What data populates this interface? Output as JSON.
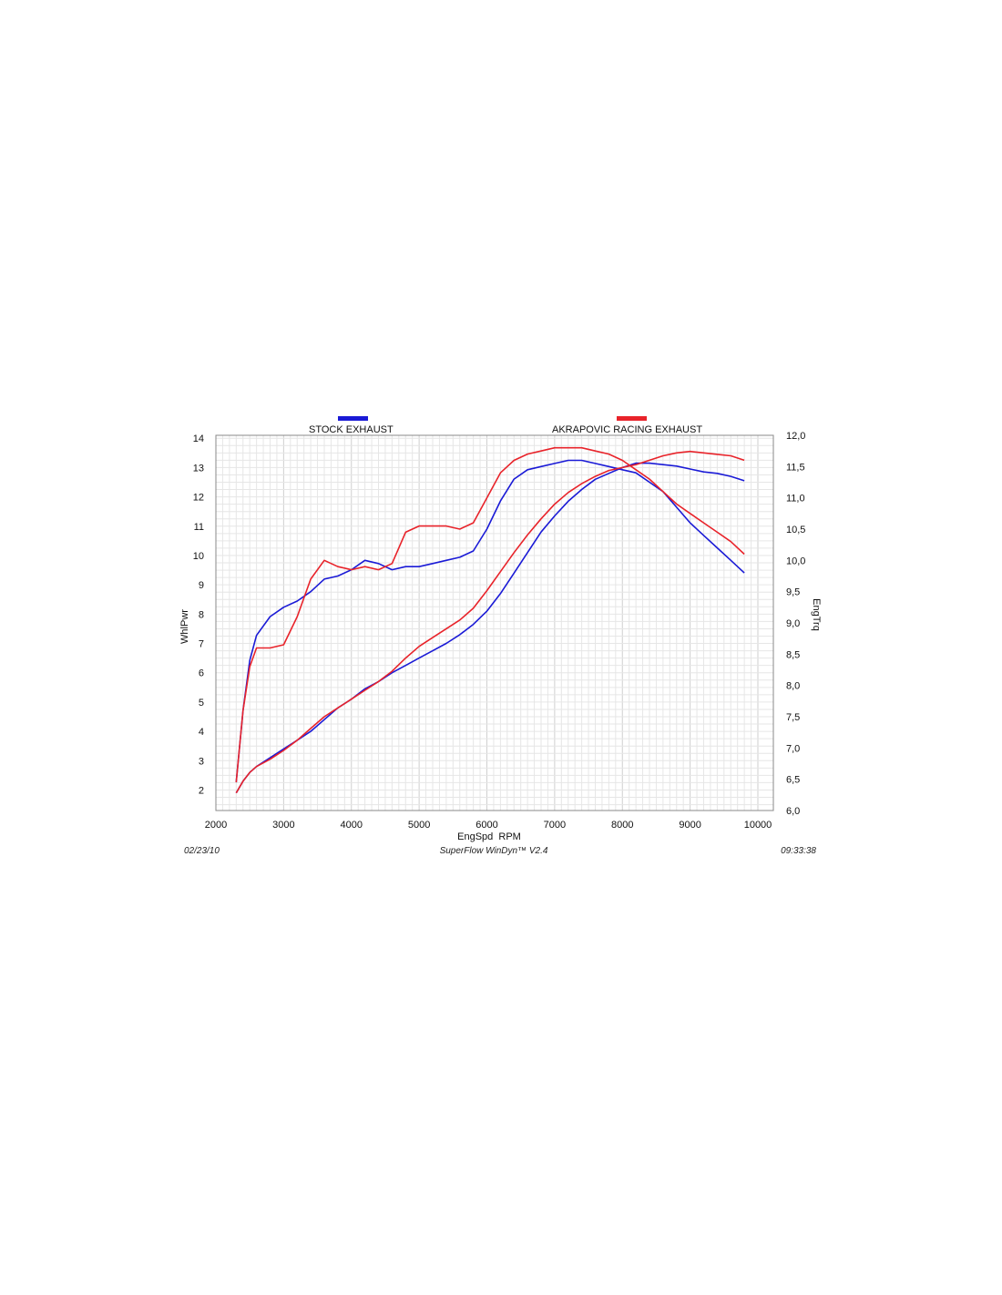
{
  "chart_data": {
    "type": "line",
    "xlabel": "EngSpd  RPM",
    "ylabel": "WhlPwr",
    "y2label": "EngTrq",
    "xlim": [
      2000,
      10000
    ],
    "ylim": [
      1.3,
      14.1
    ],
    "y2lim": [
      6.0,
      12.0
    ],
    "x_ticks": [
      2000,
      3000,
      4000,
      5000,
      6000,
      7000,
      8000,
      9000,
      10000
    ],
    "y_ticks": [
      2,
      3,
      4,
      5,
      6,
      7,
      8,
      9,
      10,
      11,
      12,
      13,
      14
    ],
    "y2_ticks": [
      "6,0",
      "6,5",
      "7,0",
      "7,5",
      "8,0",
      "8,5",
      "9,0",
      "9,5",
      "10,0",
      "10,5",
      "11,0",
      "11,5",
      "12,0"
    ],
    "grid": true,
    "legend": [
      {
        "name": "STOCK EXHAUST",
        "color": "#1a1ad6"
      },
      {
        "name": "AKRAPOVIC RACING EXHAUST",
        "color": "#e8232a"
      }
    ],
    "series": [
      {
        "name": "STOCK EXHAUST",
        "measure": "WhlPwr",
        "axis": "left",
        "color": "#1a1ad6",
        "x": [
          2300,
          2400,
          2500,
          2600,
          2800,
          3000,
          3200,
          3400,
          3600,
          3800,
          4000,
          4200,
          4400,
          4600,
          4800,
          5000,
          5200,
          5400,
          5600,
          5800,
          6000,
          6200,
          6400,
          6600,
          6800,
          7000,
          7200,
          7400,
          7600,
          7800,
          8000,
          8200,
          8400,
          8600,
          8800,
          9000,
          9200,
          9400,
          9600,
          9800
        ],
        "y": [
          1.9,
          2.3,
          2.6,
          2.8,
          3.1,
          3.4,
          3.7,
          4.0,
          4.4,
          4.8,
          5.1,
          5.45,
          5.7,
          6.0,
          6.25,
          6.5,
          6.75,
          7.0,
          7.3,
          7.65,
          8.1,
          8.7,
          9.4,
          10.1,
          10.8,
          11.35,
          11.85,
          12.25,
          12.6,
          12.8,
          13.0,
          13.15,
          13.15,
          13.1,
          13.05,
          12.95,
          12.85,
          12.8,
          12.7,
          12.55
        ]
      },
      {
        "name": "STOCK EXHAUST",
        "measure": "EngTrq",
        "axis": "right",
        "color": "#1a1ad6",
        "x": [
          2300,
          2400,
          2500,
          2600,
          2800,
          3000,
          3200,
          3400,
          3600,
          3800,
          4000,
          4200,
          4400,
          4600,
          4800,
          5000,
          5200,
          5400,
          5600,
          5800,
          6000,
          6200,
          6400,
          6600,
          6800,
          7000,
          7200,
          7400,
          7600,
          7800,
          8000,
          8200,
          8400,
          8600,
          8800,
          9000,
          9200,
          9400,
          9600,
          9800
        ],
        "y": [
          6.45,
          7.6,
          8.4,
          8.8,
          9.1,
          9.25,
          9.35,
          9.5,
          9.7,
          9.75,
          9.85,
          10.0,
          9.95,
          9.85,
          9.9,
          9.9,
          9.95,
          10.0,
          10.05,
          10.15,
          10.5,
          10.95,
          11.3,
          11.45,
          11.5,
          11.55,
          11.6,
          11.6,
          11.55,
          11.5,
          11.45,
          11.4,
          11.25,
          11.1,
          10.85,
          10.6,
          10.4,
          10.2,
          10.0,
          9.8
        ]
      },
      {
        "name": "AKRAPOVIC RACING EXHAUST",
        "measure": "WhlPwr",
        "axis": "left",
        "color": "#e8232a",
        "x": [
          2300,
          2400,
          2500,
          2600,
          2800,
          3000,
          3200,
          3400,
          3600,
          3800,
          4000,
          4200,
          4400,
          4600,
          4800,
          5000,
          5200,
          5400,
          5600,
          5800,
          6000,
          6200,
          6400,
          6600,
          6800,
          7000,
          7200,
          7400,
          7600,
          7800,
          8000,
          8200,
          8400,
          8600,
          8800,
          9000,
          9200,
          9400,
          9600,
          9800
        ],
        "y": [
          1.9,
          2.3,
          2.6,
          2.8,
          3.05,
          3.35,
          3.7,
          4.1,
          4.5,
          4.8,
          5.1,
          5.4,
          5.7,
          6.05,
          6.5,
          6.9,
          7.2,
          7.5,
          7.8,
          8.2,
          8.8,
          9.45,
          10.1,
          10.7,
          11.25,
          11.75,
          12.15,
          12.45,
          12.7,
          12.9,
          13.0,
          13.1,
          13.25,
          13.4,
          13.5,
          13.55,
          13.5,
          13.45,
          13.4,
          13.25
        ]
      },
      {
        "name": "AKRAPOVIC RACING EXHAUST",
        "measure": "EngTrq",
        "axis": "right",
        "color": "#e8232a",
        "x": [
          2300,
          2400,
          2500,
          2600,
          2800,
          3000,
          3200,
          3400,
          3600,
          3800,
          4000,
          4200,
          4400,
          4600,
          4800,
          5000,
          5200,
          5400,
          5600,
          5800,
          6000,
          6200,
          6400,
          6600,
          6800,
          7000,
          7200,
          7400,
          7600,
          7800,
          8000,
          8200,
          8400,
          8600,
          8800,
          9000,
          9200,
          9400,
          9600,
          9800
        ],
        "y": [
          6.45,
          7.6,
          8.3,
          8.6,
          8.6,
          8.65,
          9.1,
          9.7,
          10.0,
          9.9,
          9.85,
          9.9,
          9.85,
          9.95,
          10.45,
          10.55,
          10.55,
          10.55,
          10.5,
          10.6,
          11.0,
          11.4,
          11.6,
          11.7,
          11.75,
          11.8,
          11.8,
          11.8,
          11.75,
          11.7,
          11.6,
          11.45,
          11.3,
          11.1,
          10.9,
          10.75,
          10.6,
          10.45,
          10.3,
          10.1
        ]
      }
    ],
    "footer": {
      "date": "02/23/10",
      "software": "SuperFlow WinDyn™ V2.4",
      "time": "09:33:38"
    }
  }
}
